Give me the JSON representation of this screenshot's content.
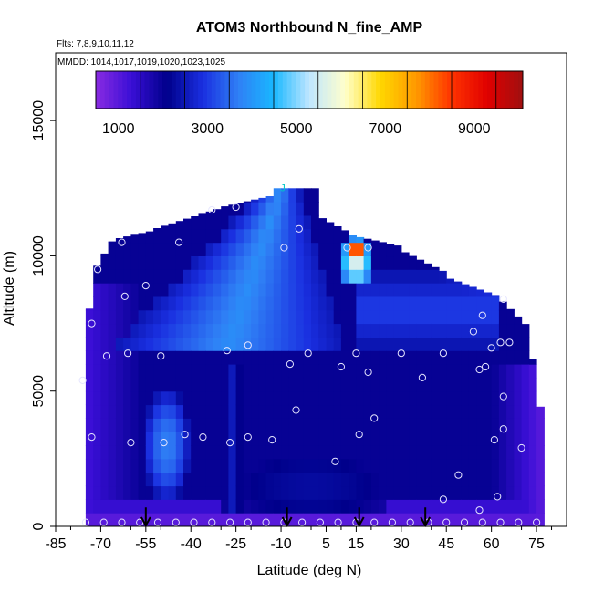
{
  "chart_data": {
    "type": "heatmap",
    "title": "ATOM3 Northbound N_fine_AMP",
    "subtitle_flights": "Flts: 7,8,9,10,11,12",
    "subtitle_dates": "MMDD: 1014,1017,1019,1020,1023,1025",
    "xlabel": "Latitude (deg N)",
    "ylabel": "Altitude (m)",
    "xlim": [
      -85,
      85
    ],
    "ylim": [
      0,
      17500
    ],
    "x_ticks": [
      -85,
      -70,
      -55,
      -40,
      -25,
      -10,
      5,
      15,
      30,
      45,
      60,
      75
    ],
    "x_tick_labels": [
      "-85",
      "-70",
      "-55",
      "-40",
      "-25",
      "-10",
      "5",
      "15",
      "30",
      "45",
      "60",
      "75"
    ],
    "y_ticks": [
      0,
      5000,
      10000,
      15000
    ],
    "y_tick_labels": [
      "0",
      "5000",
      "10000",
      "15000"
    ],
    "colorbar": {
      "range": [
        0,
        9600
      ],
      "ticks": [
        1000,
        3000,
        5000,
        7000,
        9000
      ],
      "tick_labels": [
        "1000",
        "3000",
        "5000",
        "7000",
        "9000"
      ],
      "colors": [
        "#8a2be2",
        "#3a0fd6",
        "#00008b",
        "#1a2fe0",
        "#2f7ff5",
        "#19b8ff",
        "#bfe6ff",
        "#ffffcc",
        "#ffd700",
        "#ff9900",
        "#ff3300",
        "#e00000",
        "#a01010"
      ]
    },
    "profile_markers_lat": [
      -55,
      -8,
      16,
      38
    ],
    "tropopause_marker": {
      "lat": -10,
      "alt": 12600,
      "label": "J"
    },
    "highlight_region": {
      "lat_center": 15,
      "alt_center": 10300,
      "value": 9000
    },
    "sample_points": [
      [
        -76,
        5400
      ],
      [
        -73,
        7500
      ],
      [
        -73,
        3300
      ],
      [
        -71,
        9500
      ],
      [
        -68,
        6300
      ],
      [
        -63,
        10500
      ],
      [
        -62,
        8500
      ],
      [
        -61,
        6400
      ],
      [
        -60,
        3100
      ],
      [
        -55,
        8900
      ],
      [
        -50,
        6300
      ],
      [
        -49,
        3100
      ],
      [
        -44,
        10500
      ],
      [
        -42,
        3400
      ],
      [
        -36,
        3300
      ],
      [
        -33,
        11700
      ],
      [
        -28,
        6500
      ],
      [
        -27,
        3100
      ],
      [
        -25,
        11800
      ],
      [
        -21,
        6700
      ],
      [
        -21,
        3300
      ],
      [
        -13,
        3200
      ],
      [
        -9,
        10300
      ],
      [
        -7,
        6000
      ],
      [
        -5,
        4300
      ],
      [
        -4,
        11000
      ],
      [
        -1,
        6400
      ],
      [
        8,
        2400
      ],
      [
        10,
        5900
      ],
      [
        12,
        10300
      ],
      [
        15,
        6400
      ],
      [
        16,
        3400
      ],
      [
        19,
        10300
      ],
      [
        19,
        5700
      ],
      [
        21,
        4000
      ],
      [
        30,
        6400
      ],
      [
        37,
        5500
      ],
      [
        44,
        6400
      ],
      [
        44,
        1000
      ],
      [
        49,
        1900
      ],
      [
        54,
        7200
      ],
      [
        56,
        5800
      ],
      [
        56,
        600
      ],
      [
        57,
        7800
      ],
      [
        58,
        5900
      ],
      [
        60,
        6600
      ],
      [
        61,
        3200
      ],
      [
        62,
        1100
      ],
      [
        63,
        6800
      ],
      [
        64,
        3600
      ],
      [
        64,
        4800
      ],
      [
        64,
        8400
      ],
      [
        66,
        6800
      ],
      [
        70,
        2900
      ]
    ],
    "surface_points_lat": [
      -75,
      -69,
      -63,
      -57,
      -51,
      -45,
      -39,
      -33,
      -27,
      -21,
      -15,
      -9,
      -3,
      3,
      9,
      15,
      21,
      27,
      33,
      39,
      45,
      51,
      57,
      63,
      69,
      75
    ]
  }
}
